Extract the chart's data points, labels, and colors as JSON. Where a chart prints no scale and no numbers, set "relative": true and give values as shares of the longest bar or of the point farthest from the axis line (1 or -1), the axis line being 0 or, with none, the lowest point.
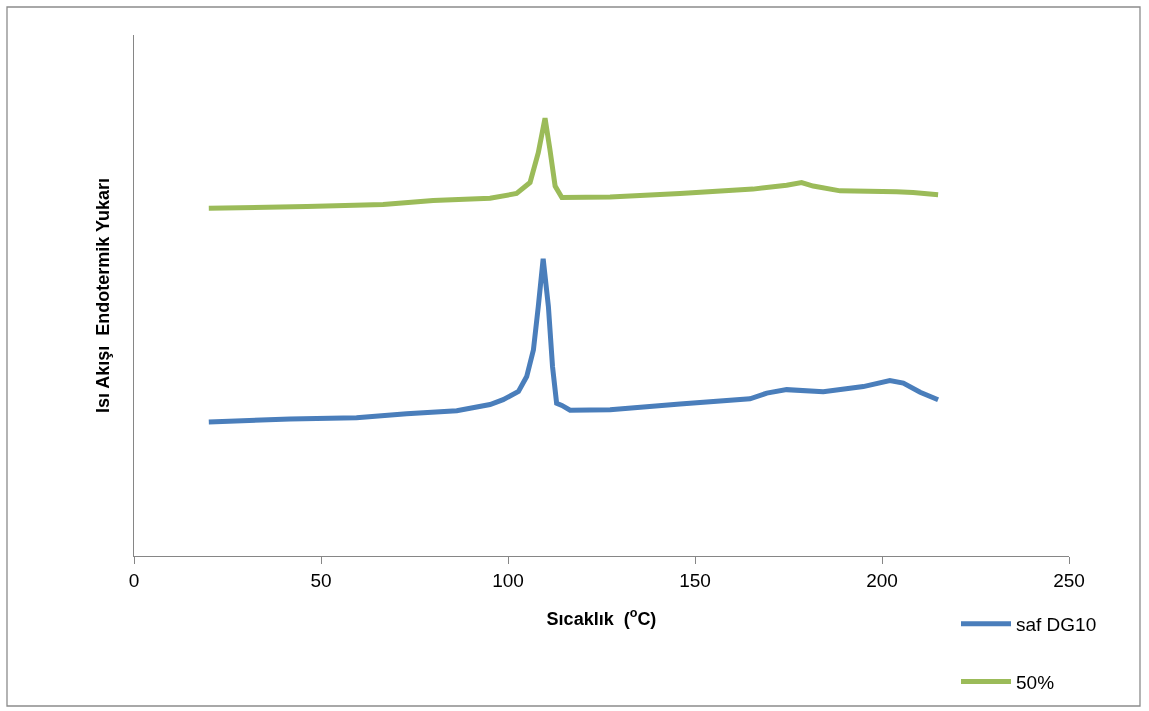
{
  "chart_data": {
    "type": "line",
    "xlabel": "Sıcaklık  ($^{o}$C)",
    "ylabel": "Isı Akışı  Endotermik Yukarı",
    "relative": true,
    "xlim": [
      0,
      250
    ],
    "xticks": [
      0,
      50,
      100,
      150,
      200,
      250
    ],
    "grid": false,
    "legend": "bottom right",
    "line_style": "solid",
    "series": [
      {
        "name": "saf DG10",
        "color": "#4a7ebb",
        "x": [
          20,
          41.7,
          59.5,
          72.9,
          86.3,
          95.2,
          98.7,
          102.8,
          105,
          106.8,
          108.1,
          109.4,
          110.8,
          111.9,
          113,
          114.4,
          116.6,
          127.3,
          146,
          164.7,
          169.2,
          174.5,
          184.3,
          195,
          202.1,
          205.7,
          210.2,
          215
        ],
        "values": [
          0.306,
          0.313,
          0.316,
          0.325,
          0.332,
          0.346,
          0.357,
          0.376,
          0.41,
          0.471,
          0.57,
          0.679,
          0.57,
          0.433,
          0.349,
          0.344,
          0.333,
          0.334,
          0.347,
          0.359,
          0.372,
          0.38,
          0.375,
          0.387,
          0.401,
          0.395,
          0.374,
          0.357
        ]
      },
      {
        "name": "50%",
        "color": "#9bbb59",
        "x": [
          20,
          46.2,
          66.6,
          80,
          95.2,
          102.3,
          105.9,
          108.1,
          109.9,
          111.2,
          112.6,
          114.4,
          127.3,
          146,
          165.5,
          174.5,
          178.5,
          181.6,
          188.8,
          203.9,
          208.3,
          215
        ],
        "values": [
          0.794,
          0.798,
          0.803,
          0.812,
          0.817,
          0.828,
          0.853,
          0.921,
          1.0,
          0.929,
          0.845,
          0.819,
          0.82,
          0.828,
          0.838,
          0.847,
          0.853,
          0.845,
          0.834,
          0.832,
          0.83,
          0.825
        ]
      }
    ]
  }
}
